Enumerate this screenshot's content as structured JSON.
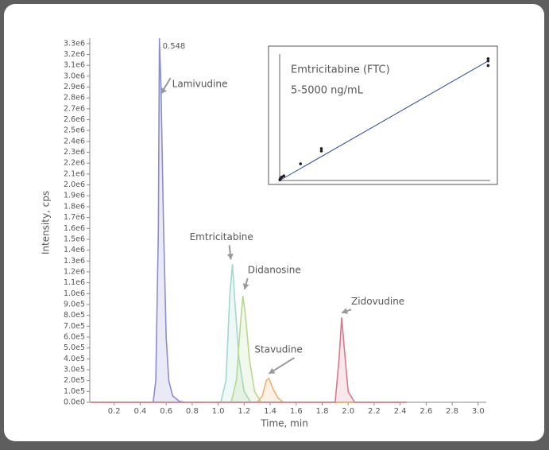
{
  "chart_data": [
    {
      "type": "line",
      "x_label": "Time, min",
      "y_label": "Intensity, cps",
      "apex_time": 0.548,
      "xlim": [
        0,
        3.05
      ],
      "xticks": [
        0.2,
        0.4,
        0.6,
        0.8,
        {
          "value": 1,
          "label": "1.0"
        },
        1.2,
        1.4,
        1.6,
        1.8,
        {
          "value": 2,
          "label": "2.0"
        },
        2.2,
        2.4,
        2.6,
        2.8,
        {
          "value": 3,
          "label": "3.0"
        }
      ],
      "ylim": [
        0,
        3350000
      ],
      "yticks": [
        {
          "value": 0,
          "label": "0.0e0"
        },
        {
          "value": 100000,
          "label": "1.0e5"
        },
        {
          "value": 200000,
          "label": "2.0e5"
        },
        {
          "value": 300000,
          "label": "3.0e5"
        },
        {
          "value": 400000,
          "label": "4.0e5"
        },
        {
          "value": 500000,
          "label": "5.0e5"
        },
        {
          "value": 600000,
          "label": "6.0e5"
        },
        {
          "value": 700000,
          "label": "7.0e5"
        },
        {
          "value": 800000,
          "label": "8.0e5"
        },
        {
          "value": 900000,
          "label": "9.0e5"
        },
        {
          "value": 1000000,
          "label": "1.0e6"
        },
        {
          "value": 1100000,
          "label": "1.1e6"
        },
        {
          "value": 1200000,
          "label": "1.2e6"
        },
        {
          "value": 1300000,
          "label": "1.3e6"
        },
        {
          "value": 1400000,
          "label": "1.4e6"
        },
        {
          "value": 1500000,
          "label": "1.5e6"
        },
        {
          "value": 1600000,
          "label": "1.6e6"
        },
        {
          "value": 1700000,
          "label": "1.7e6"
        },
        {
          "value": 1800000,
          "label": "1.8e6"
        },
        {
          "value": 1900000,
          "label": "1.9e6"
        },
        {
          "value": 2000000,
          "label": "2.0e6"
        },
        {
          "value": 2100000,
          "label": "2.1e6"
        },
        {
          "value": 2200000,
          "label": "2.2e6"
        },
        {
          "value": 2300000,
          "label": "2.3e6"
        },
        {
          "value": 2400000,
          "label": "2.4e6"
        },
        {
          "value": 2500000,
          "label": "2.5e6"
        },
        {
          "value": 2600000,
          "label": "2.6e6"
        },
        {
          "value": 2700000,
          "label": "2.7e6"
        },
        {
          "value": 2800000,
          "label": "2.8e6"
        },
        {
          "value": 2900000,
          "label": "2.9e6"
        },
        {
          "value": 3000000,
          "label": "3.0e6"
        },
        {
          "value": 3100000,
          "label": "3.1e6"
        },
        {
          "value": 3200000,
          "label": "3.2e6"
        },
        {
          "value": 3300000,
          "label": "3.3e6"
        }
      ],
      "series": [
        {
          "name": "Lamivudine",
          "color": "#8c8cd0",
          "x": [
            0.02,
            0.5,
            0.52,
            0.54,
            0.548,
            0.56,
            0.58,
            0.6,
            0.62,
            0.65,
            0.7,
            0.75,
            2.45
          ],
          "values": [
            0,
            0,
            200000,
            1600000,
            3350000,
            2900000,
            1600000,
            600000,
            200000,
            60000,
            10000,
            0,
            0
          ]
        },
        {
          "name": "Emtricitabine",
          "color": "#9fd8cf",
          "x": [
            0.02,
            1.02,
            1.06,
            1.09,
            1.11,
            1.13,
            1.16,
            1.2,
            1.25,
            2.45
          ],
          "values": [
            0,
            0,
            200000,
            1000000,
            1270000,
            900000,
            400000,
            100000,
            0,
            0
          ]
        },
        {
          "name": "Didanosine",
          "color": "#b8d890",
          "x": [
            0.02,
            1.1,
            1.14,
            1.17,
            1.19,
            1.21,
            1.24,
            1.28,
            1.33,
            2.45
          ],
          "values": [
            0,
            0,
            200000,
            700000,
            980000,
            800000,
            400000,
            100000,
            0,
            0
          ]
        },
        {
          "name": "Stavudine",
          "color": "#f0b070",
          "x": [
            0.02,
            1.3,
            1.34,
            1.37,
            1.39,
            1.42,
            1.46,
            1.5,
            2.45
          ],
          "values": [
            0,
            0,
            60000,
            200000,
            220000,
            130000,
            40000,
            0,
            0
          ]
        },
        {
          "name": "Zidovudine",
          "color": "#d9798f",
          "x": [
            0.02,
            1.9,
            1.93,
            1.95,
            1.97,
            2.0,
            2.05,
            2.45
          ],
          "values": [
            0,
            0,
            400000,
            780000,
            500000,
            100000,
            0,
            0
          ]
        }
      ]
    },
    {
      "type": "scatter",
      "title": "Emtricitabine  (FTC)",
      "subtitle": "5-5000 ng/mL",
      "xlim": [
        0,
        5050
      ],
      "ylim": [
        0,
        1100000
      ],
      "color": "#222222",
      "fit_color": "#2a4a9a",
      "x": [
        5,
        10,
        20,
        50,
        100,
        500,
        1000,
        1000,
        5000,
        5000,
        5000
      ],
      "values": [
        5000,
        10000,
        20000,
        30000,
        40000,
        145000,
        277000,
        256000,
        1060000,
        1040000,
        1000000
      ],
      "fit": {
        "x": [
          0,
          5000
        ],
        "values": [
          0,
          1040000
        ]
      }
    }
  ]
}
